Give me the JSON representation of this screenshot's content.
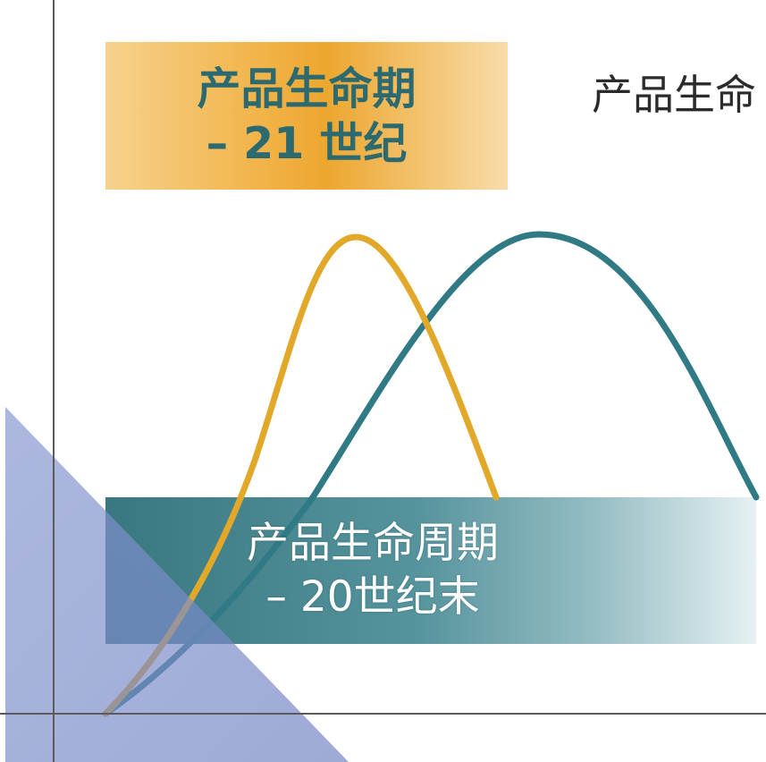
{
  "labels": {
    "plc_21": {
      "line1": "产品生命期",
      "line2": "– 21 世纪"
    },
    "plc_20": {
      "line1": "产品生命周期",
      "line2": "– 20世纪末"
    },
    "right_title": "产品生命"
  },
  "colors": {
    "curve_21": "#e2a82a",
    "curve_20": "#2f7a84",
    "orange_band": "#f0b13e",
    "teal_band": "#3c7d88",
    "triangle": "#7f90c9",
    "axis": "#5b5b5b"
  }
}
